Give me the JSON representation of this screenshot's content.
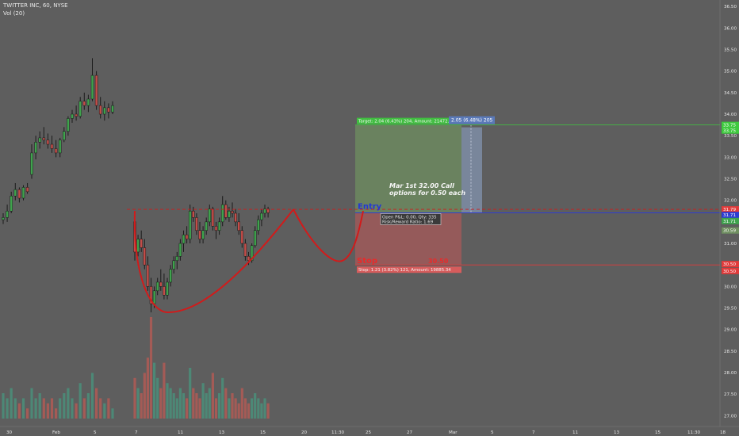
{
  "header": {
    "symbol_line": "TWITTER INC, 60, NYSE",
    "volume_line": "Vol (20)"
  },
  "colors": {
    "background": "#5e5e5e",
    "up": "#3fa34d",
    "down": "#c44d49",
    "wick": "#1b1b1b",
    "profit_zone": "#6f8f60",
    "loss_zone": "#a85a5a",
    "pattern_line": "#d11b1b",
    "entry_line": "#2e3cd0",
    "target_line": "#3ec93e",
    "stop_line": "#e03a3a",
    "hover_box": "#8090aa"
  },
  "chart_data": {
    "type": "candlestick",
    "price_axis_ticks": [
      "36.50",
      "36.00",
      "35.50",
      "35.00",
      "34.50",
      "34.00",
      "33.50",
      "33.00",
      "32.50",
      "32.00",
      "31.50",
      "31.00",
      "30.50",
      "30.00",
      "29.50",
      "29.00",
      "28.50",
      "28.00",
      "27.50",
      "27.00"
    ],
    "time_axis_ticks": [
      "30",
      "Feb",
      "5",
      "7",
      "11",
      "13",
      "15",
      "20",
      "11:30",
      "25",
      "27",
      "Mar",
      "5",
      "7",
      "11",
      "13",
      "15",
      "11:30",
      "18",
      "20"
    ],
    "ylim": [
      26.75,
      36.65
    ],
    "candles": [
      [
        31.55,
        31.7,
        31.45,
        31.6
      ],
      [
        31.6,
        31.9,
        31.5,
        31.75
      ],
      [
        31.75,
        32.2,
        31.7,
        32.1
      ],
      [
        32.1,
        32.4,
        32.0,
        32.25
      ],
      [
        32.25,
        32.3,
        31.95,
        32.05
      ],
      [
        32.05,
        32.35,
        32.0,
        32.3
      ],
      [
        32.3,
        32.4,
        32.15,
        32.2
      ],
      [
        32.6,
        33.3,
        32.5,
        33.1
      ],
      [
        33.1,
        33.5,
        32.95,
        33.35
      ],
      [
        33.35,
        33.6,
        33.2,
        33.45
      ],
      [
        33.45,
        33.7,
        33.3,
        33.4
      ],
      [
        33.4,
        33.55,
        33.2,
        33.3
      ],
      [
        33.3,
        33.5,
        33.1,
        33.2
      ],
      [
        33.2,
        33.4,
        33.0,
        33.1
      ],
      [
        33.1,
        33.45,
        33.0,
        33.4
      ],
      [
        33.4,
        33.7,
        33.35,
        33.6
      ],
      [
        33.6,
        33.95,
        33.5,
        33.9
      ],
      [
        33.9,
        34.1,
        33.8,
        34.0
      ],
      [
        34.0,
        34.2,
        33.85,
        33.95
      ],
      [
        33.95,
        34.4,
        33.9,
        34.3
      ],
      [
        34.3,
        34.5,
        34.1,
        34.2
      ],
      [
        34.2,
        34.45,
        34.05,
        34.35
      ],
      [
        34.35,
        35.3,
        34.3,
        34.9
      ],
      [
        34.9,
        35.0,
        34.1,
        34.2
      ],
      [
        34.2,
        34.4,
        33.9,
        34.0
      ],
      [
        34.0,
        34.3,
        33.85,
        34.15
      ],
      [
        34.15,
        34.25,
        33.9,
        34.05
      ],
      [
        34.05,
        34.3,
        34.0,
        34.2
      ],
      [
        31.5,
        31.7,
        30.6,
        30.8
      ],
      [
        30.8,
        31.2,
        30.7,
        31.1
      ],
      [
        31.1,
        31.3,
        30.8,
        30.9
      ],
      [
        30.9,
        31.1,
        30.4,
        30.5
      ],
      [
        30.5,
        30.7,
        29.9,
        30.0
      ],
      [
        30.0,
        30.2,
        29.4,
        29.6
      ],
      [
        29.6,
        30.0,
        29.5,
        29.9
      ],
      [
        29.9,
        30.2,
        29.8,
        30.1
      ],
      [
        30.1,
        30.4,
        29.9,
        30.0
      ],
      [
        30.0,
        30.3,
        29.7,
        29.8
      ],
      [
        29.8,
        30.2,
        29.7,
        30.1
      ],
      [
        30.1,
        30.5,
        30.0,
        30.4
      ],
      [
        30.4,
        30.7,
        30.3,
        30.6
      ],
      [
        30.6,
        30.8,
        30.4,
        30.7
      ],
      [
        30.7,
        31.1,
        30.6,
        31.0
      ],
      [
        31.0,
        31.3,
        30.8,
        31.2
      ],
      [
        31.2,
        31.4,
        31.0,
        31.1
      ],
      [
        31.1,
        31.9,
        31.0,
        31.75
      ],
      [
        31.75,
        31.85,
        31.5,
        31.6
      ],
      [
        31.6,
        31.7,
        31.2,
        31.3
      ],
      [
        31.3,
        31.5,
        31.0,
        31.1
      ],
      [
        31.1,
        31.4,
        31.0,
        31.3
      ],
      [
        31.3,
        31.6,
        31.2,
        31.5
      ],
      [
        31.5,
        31.9,
        31.4,
        31.8
      ],
      [
        31.8,
        31.85,
        31.3,
        31.4
      ],
      [
        31.4,
        31.5,
        31.1,
        31.3
      ],
      [
        31.3,
        31.6,
        31.2,
        31.5
      ],
      [
        31.5,
        32.1,
        31.4,
        31.9
      ],
      [
        31.9,
        32.0,
        31.55,
        31.6
      ],
      [
        31.6,
        31.85,
        31.5,
        31.75
      ],
      [
        31.75,
        31.95,
        31.6,
        31.7
      ],
      [
        31.7,
        31.8,
        31.4,
        31.5
      ],
      [
        31.5,
        31.7,
        31.2,
        31.3
      ],
      [
        31.3,
        31.4,
        30.9,
        31.0
      ],
      [
        31.0,
        31.1,
        30.6,
        30.7
      ],
      [
        30.7,
        30.8,
        30.5,
        30.6
      ],
      [
        30.6,
        31.0,
        30.55,
        30.95
      ],
      [
        30.95,
        31.4,
        30.9,
        31.3
      ],
      [
        31.3,
        31.65,
        31.2,
        31.55
      ],
      [
        31.55,
        31.8,
        31.4,
        31.7
      ],
      [
        31.7,
        31.9,
        31.6,
        31.8
      ],
      [
        31.8,
        31.85,
        31.6,
        31.71
      ]
    ],
    "volume": [
      0.25,
      0.2,
      0.3,
      0.2,
      0.15,
      0.2,
      0.1,
      0.3,
      0.2,
      0.25,
      0.2,
      0.15,
      0.2,
      0.1,
      0.2,
      0.25,
      0.3,
      0.2,
      0.15,
      0.35,
      0.2,
      0.25,
      0.45,
      0.3,
      0.2,
      0.15,
      0.2,
      0.1,
      0.4,
      0.3,
      0.25,
      0.45,
      0.6,
      1.0,
      0.55,
      0.4,
      0.3,
      0.55,
      0.35,
      0.3,
      0.25,
      0.2,
      0.3,
      0.25,
      0.2,
      0.5,
      0.3,
      0.25,
      0.2,
      0.35,
      0.25,
      0.3,
      0.45,
      0.2,
      0.25,
      0.4,
      0.3,
      0.2,
      0.25,
      0.2,
      0.15,
      0.3,
      0.2,
      0.15,
      0.2,
      0.25,
      0.2,
      0.15,
      0.2,
      0.15
    ],
    "pattern": {
      "type": "cup and handle",
      "rim_price": 31.79
    },
    "position": {
      "entry_label": "Entry",
      "stop_label": "Stop",
      "stop_value_label": "30.50",
      "target_info": "Target: 2.04 (6.43%) 204, Amount: 21472.15",
      "hover_info": "2.05 (6.48%) 205",
      "open_pnl": "Open P&L: 0.00, Qty: 335",
      "risk_reward": "Risk/Reward Ratio: 1.69",
      "stop_info": "Stop: 1.21 (3.82%) 121, Amount: 19885.34",
      "entry_price": 31.71,
      "target_price": 33.75,
      "stop_price": 30.5
    },
    "annotation": "Mar 1st 32.00 Call\noptions for 0.50 each",
    "price_labels": [
      {
        "text": "33.75",
        "price": 33.75,
        "color": "#3ec93e"
      },
      {
        "text": "33.75",
        "price": 33.62,
        "color": "#3ec93e"
      },
      {
        "text": "31.79",
        "price": 31.79,
        "color": "#e03a3a"
      },
      {
        "text": "31.71",
        "price": 31.66,
        "color": "#2e3cd0"
      },
      {
        "text": "31.71",
        "price": 31.52,
        "color": "#3ea34d"
      },
      {
        "text": "30.59",
        "price": 31.3,
        "color": "#6f8f60"
      },
      {
        "text": "30.50",
        "price": 30.52,
        "color": "#e03a3a"
      },
      {
        "text": "30.50",
        "price": 30.36,
        "color": "#e03a3a"
      }
    ]
  }
}
